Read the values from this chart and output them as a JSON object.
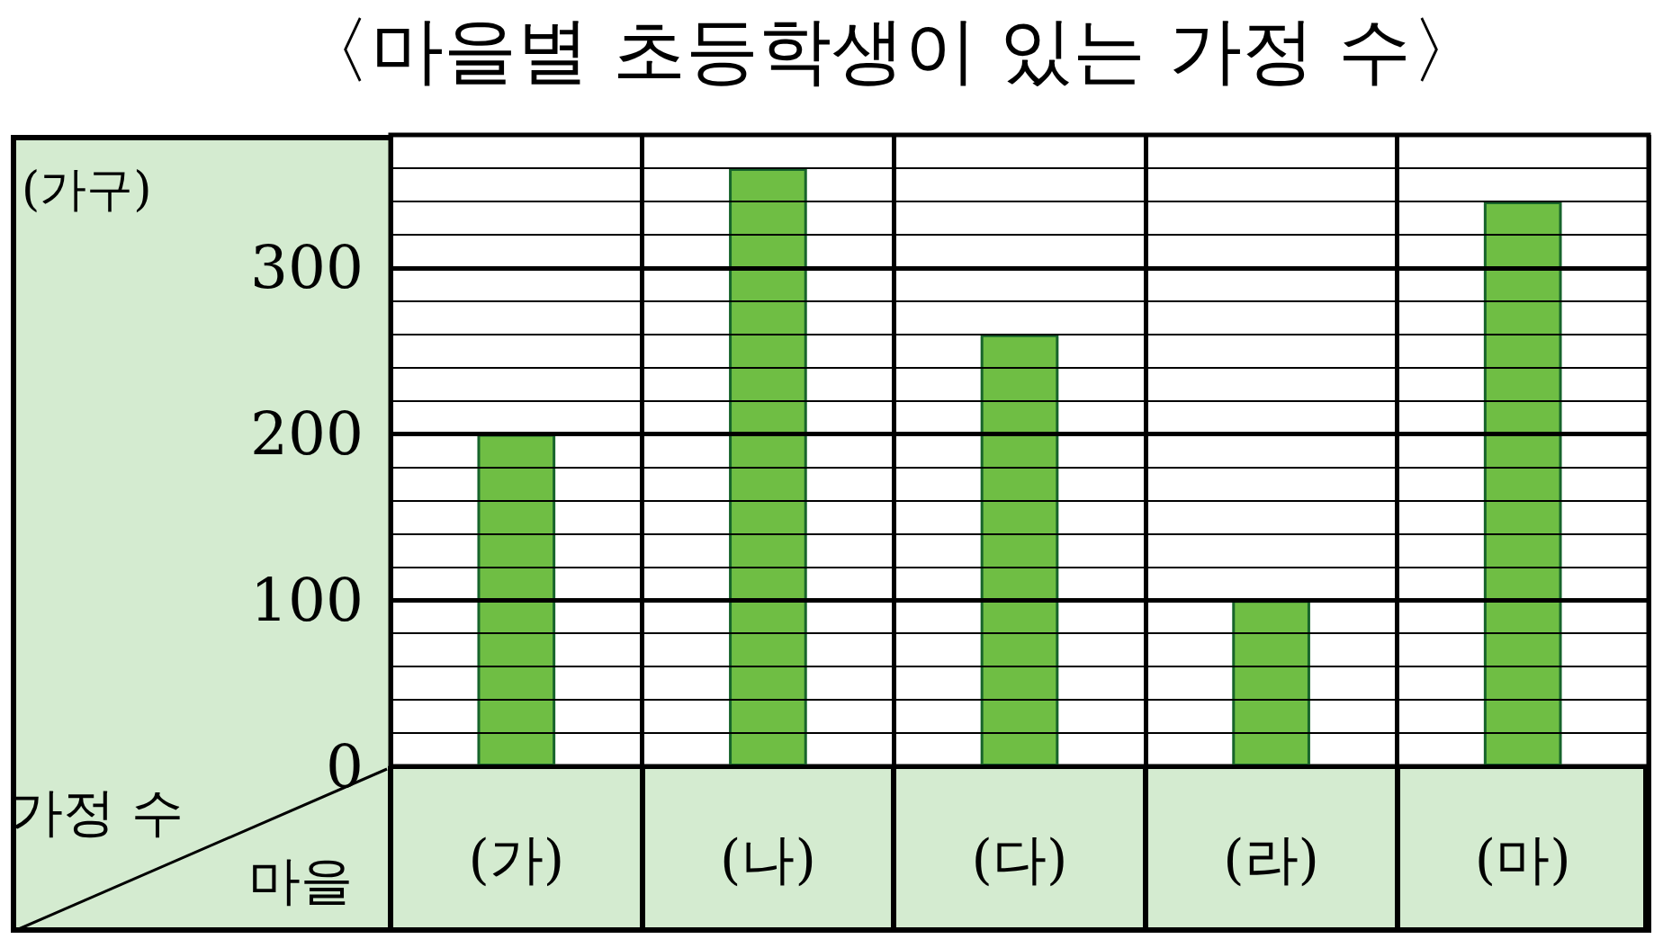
{
  "chart_data": {
    "type": "bar",
    "title": "〈마을별 초등학생이 있는 가정 수〉",
    "xlabel": "마을",
    "ylabel": "가정 수",
    "annotations": [
      "(가구)"
    ],
    "categories": [
      "(가)",
      "(나)",
      "(다)",
      "(라)",
      "(마)"
    ],
    "values": [
      200,
      360,
      260,
      100,
      340
    ],
    "color": "#6fbe44",
    "ylim": [
      0,
      380
    ],
    "yticks": [
      0,
      {
        "value": 20,
        "label": null
      },
      {
        "value": 40,
        "label": null
      },
      {
        "value": 60,
        "label": null
      },
      {
        "value": 80,
        "label": null
      },
      100,
      {
        "value": 120,
        "label": null
      },
      {
        "value": 140,
        "label": null
      },
      {
        "value": 160,
        "label": null
      },
      {
        "value": 180,
        "label": null
      },
      200,
      {
        "value": 220,
        "label": null
      },
      {
        "value": 240,
        "label": null
      },
      {
        "value": 260,
        "label": null
      },
      {
        "value": 280,
        "label": null
      },
      300,
      {
        "value": 320,
        "label": null
      },
      {
        "value": 340,
        "label": null
      },
      {
        "value": 360,
        "label": null
      }
    ],
    "grid": true
  }
}
